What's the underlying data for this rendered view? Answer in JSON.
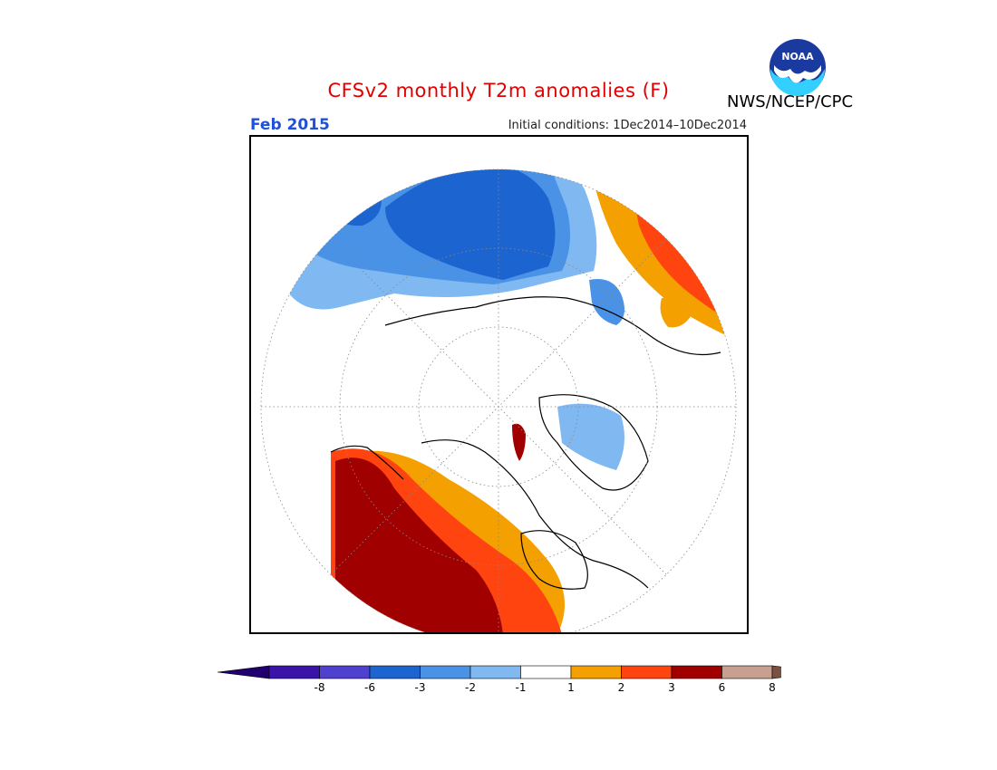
{
  "header": {
    "title": "CFSv2 monthly T2m anomalies (F)",
    "date_label": "Feb 2015",
    "initial_conditions": "Initial conditions: 1Dec2014–10Dec2014",
    "agency": "NWS/NCEP/CPC",
    "logo_text": "NOAA"
  },
  "map": {
    "projection": "north-polar-stereographic",
    "variable": "T2m anomaly",
    "units": "F"
  },
  "legend": {
    "bins": [
      {
        "label": "-8",
        "color": "#3a14a8"
      },
      {
        "label": "-6",
        "color": "#5040d0"
      },
      {
        "label": "-3",
        "color": "#1c64d0"
      },
      {
        "label": "-2",
        "color": "#4a92e6"
      },
      {
        "label": "-1",
        "color": "#80b8f2"
      },
      {
        "label": "1",
        "color": "#ffffff"
      },
      {
        "label": "2",
        "color": "#f4a000"
      },
      {
        "label": "3",
        "color": "#ff4410"
      },
      {
        "label": "6",
        "color": "#a00000"
      },
      {
        "label": "8",
        "color": "#c8a090"
      }
    ],
    "low_arrow_color": "#200070",
    "high_arrow_color": "#7a5040"
  }
}
